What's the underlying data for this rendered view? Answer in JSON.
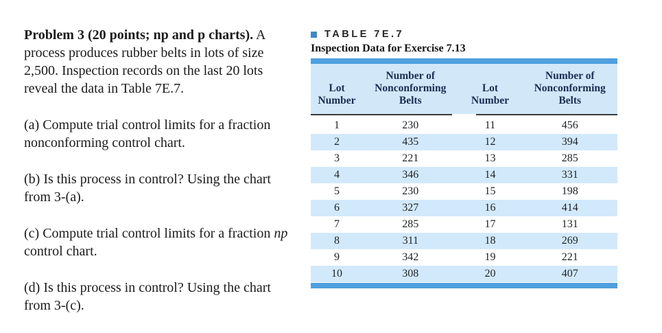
{
  "problem": {
    "title": "Problem 3 (20 points; np and p charts).",
    "intro": "A process produces rubber belts in lots of size 2,500. Inspection records on the last 20 lots reveal the data in Table 7E.7.",
    "part_a": "(a) Compute trial control limits for a fraction nonconforming control chart.",
    "part_b": "(b) Is this process in control? Using the chart from 3-(a).",
    "part_c_prefix": "(c) Compute trial control limits for a fraction ",
    "part_c_italic": "np",
    "part_c_suffix": " control chart.",
    "part_d": "(d) Is this process in control? Using the chart from 3-(c)."
  },
  "table": {
    "label": "TABLE 7E.7",
    "caption": "Inspection Data for Exercise 7.13",
    "headers": [
      "Lot\nNumber",
      "Number of\nNonconforming\nBelts",
      "Lot\nNumber",
      "Number of\nNonconforming\nBelts"
    ],
    "rows": [
      [
        "1",
        "230",
        "11",
        "456"
      ],
      [
        "2",
        "435",
        "12",
        "394"
      ],
      [
        "3",
        "221",
        "13",
        "285"
      ],
      [
        "4",
        "346",
        "14",
        "331"
      ],
      [
        "5",
        "230",
        "15",
        "198"
      ],
      [
        "6",
        "327",
        "16",
        "414"
      ],
      [
        "7",
        "285",
        "17",
        "131"
      ],
      [
        "8",
        "311",
        "18",
        "269"
      ],
      [
        "9",
        "342",
        "19",
        "221"
      ],
      [
        "10",
        "308",
        "20",
        "407"
      ]
    ],
    "colors": {
      "bar": "#4f9fe0",
      "header_bg": "#d2e8f9",
      "stripe": "#d2e9fb",
      "header_text": "#1c2d52",
      "body_text": "#1e2126",
      "bullet": "#3f87c9"
    }
  }
}
